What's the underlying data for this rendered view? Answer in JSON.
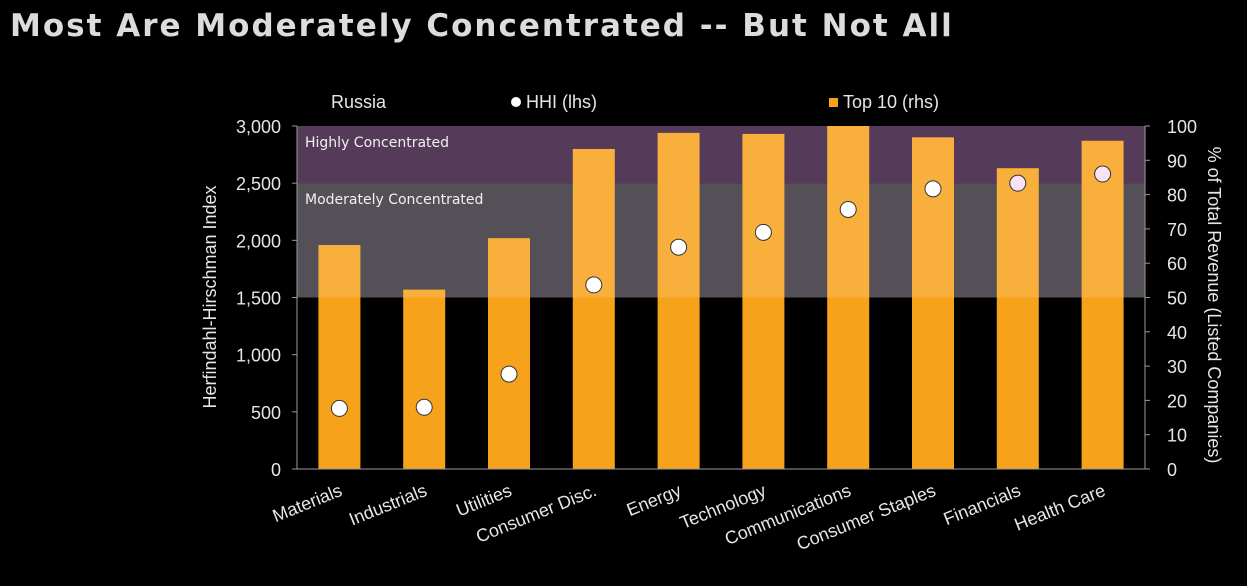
{
  "chart_data": {
    "type": "bar",
    "title": "Most Are Moderately Concentrated -- But Not All",
    "region_label": "Russia",
    "categories": [
      "Materials",
      "Industrials",
      "Utilities",
      "Consumer Disc.",
      "Energy",
      "Technology",
      "Communications",
      "Consumer Staples",
      "Financials",
      "Health Care"
    ],
    "series": [
      {
        "name": "HHI (lhs)",
        "type": "scatter",
        "axis": "left",
        "values": [
          530,
          540,
          830,
          1610,
          1940,
          2070,
          2270,
          2450,
          2500,
          2580
        ]
      },
      {
        "name": "Top 10 (rhs)",
        "type": "bar",
        "axis": "right",
        "values": [
          65.3,
          52.3,
          67.3,
          93.3,
          98.0,
          97.7,
          100.0,
          96.7,
          87.7,
          95.7
        ]
      }
    ],
    "ylabel": "Herfindahl-Hirschman Index",
    "y2label": "% of Total Revenue  (Listed Companies)",
    "ylim": [
      0,
      3000
    ],
    "y2lim": [
      0,
      100
    ],
    "yticks": [
      "0",
      "500",
      "1,000",
      "1,500",
      "2,000",
      "2,500",
      "3,000"
    ],
    "y2ticks": [
      "0",
      "10",
      "20",
      "30",
      "40",
      "50",
      "60",
      "70",
      "80",
      "90",
      "100"
    ],
    "zones": [
      {
        "label": "Highly Concentrated",
        "from": 2500,
        "to": 3000,
        "color": "#3a1a3e"
      },
      {
        "label": "Moderately Concentrated",
        "from": 1500,
        "to": 2500,
        "color": "#3a343c"
      }
    ],
    "colors": {
      "bar": "#f7a21b",
      "marker": "#ffffff"
    }
  }
}
